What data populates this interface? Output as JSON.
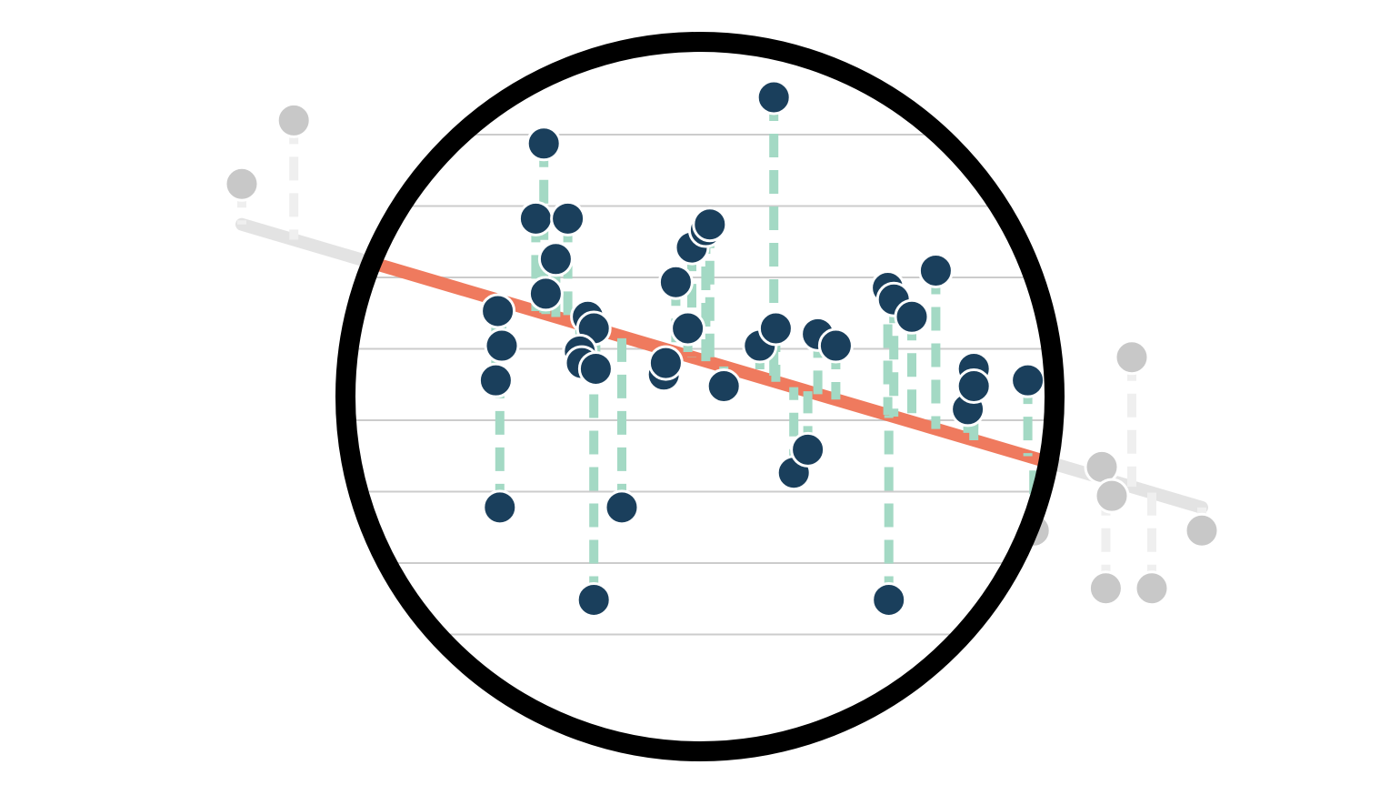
{
  "chart_data": {
    "type": "scatter",
    "description_overlay": "magnifier-lens",
    "xlim": [
      0,
      10
    ],
    "ylim": [
      0,
      10
    ],
    "grid": true,
    "colors": {
      "point_in_lens": "#1a3f5c",
      "point_outside": "#c8c8c8",
      "residual_in_lens": "#a3d9c4",
      "residual_outside": "#efefef",
      "fit_line_in_lens": "#ef7a5e",
      "fit_line_outside": "#e3e3e3",
      "lens_ring": "#000000",
      "grid": "#cccccc"
    },
    "regression_line": {
      "x0": 0.6,
      "y0": 7.8,
      "x1": 10.2,
      "y1": 2.9
    },
    "points": [
      {
        "x": 0.6,
        "y": 8.5
      },
      {
        "x": 1.12,
        "y": 9.6
      },
      {
        "x": 3.16,
        "y": 6.3
      },
      {
        "x": 3.2,
        "y": 5.7
      },
      {
        "x": 3.14,
        "y": 5.1
      },
      {
        "x": 3.18,
        "y": 2.9
      },
      {
        "x": 3.62,
        "y": 9.2
      },
      {
        "x": 3.54,
        "y": 7.9
      },
      {
        "x": 3.74,
        "y": 7.2
      },
      {
        "x": 3.64,
        "y": 6.6
      },
      {
        "x": 3.86,
        "y": 7.9
      },
      {
        "x": 4.06,
        "y": 6.2
      },
      {
        "x": 4.12,
        "y": 6.0
      },
      {
        "x": 3.98,
        "y": 5.6
      },
      {
        "x": 4.0,
        "y": 5.4
      },
      {
        "x": 4.14,
        "y": 5.3
      },
      {
        "x": 4.12,
        "y": 1.3
      },
      {
        "x": 4.4,
        "y": 2.9
      },
      {
        "x": 4.82,
        "y": 5.2
      },
      {
        "x": 4.84,
        "y": 5.4
      },
      {
        "x": 4.94,
        "y": 6.8
      },
      {
        "x": 5.06,
        "y": 6.0
      },
      {
        "x": 5.1,
        "y": 7.4
      },
      {
        "x": 5.24,
        "y": 7.7
      },
      {
        "x": 5.28,
        "y": 7.8
      },
      {
        "x": 5.42,
        "y": 5.0
      },
      {
        "x": 5.78,
        "y": 5.7
      },
      {
        "x": 5.92,
        "y": 10.0
      },
      {
        "x": 5.94,
        "y": 6.0
      },
      {
        "x": 6.12,
        "y": 3.5
      },
      {
        "x": 6.26,
        "y": 3.9
      },
      {
        "x": 6.36,
        "y": 5.9
      },
      {
        "x": 6.54,
        "y": 5.7
      },
      {
        "x": 7.06,
        "y": 6.7
      },
      {
        "x": 7.12,
        "y": 6.5
      },
      {
        "x": 7.3,
        "y": 6.2
      },
      {
        "x": 7.07,
        "y": 1.3
      },
      {
        "x": 7.54,
        "y": 7.0
      },
      {
        "x": 7.86,
        "y": 4.6
      },
      {
        "x": 7.92,
        "y": 5.3
      },
      {
        "x": 7.92,
        "y": 5.0
      },
      {
        "x": 8.46,
        "y": 5.1
      },
      {
        "x": 8.52,
        "y": 2.5
      },
      {
        "x": 9.2,
        "y": 3.6
      },
      {
        "x": 9.3,
        "y": 3.1
      },
      {
        "x": 9.24,
        "y": 1.5
      },
      {
        "x": 9.5,
        "y": 5.5
      },
      {
        "x": 9.7,
        "y": 1.5
      },
      {
        "x": 10.2,
        "y": 2.5
      }
    ]
  }
}
